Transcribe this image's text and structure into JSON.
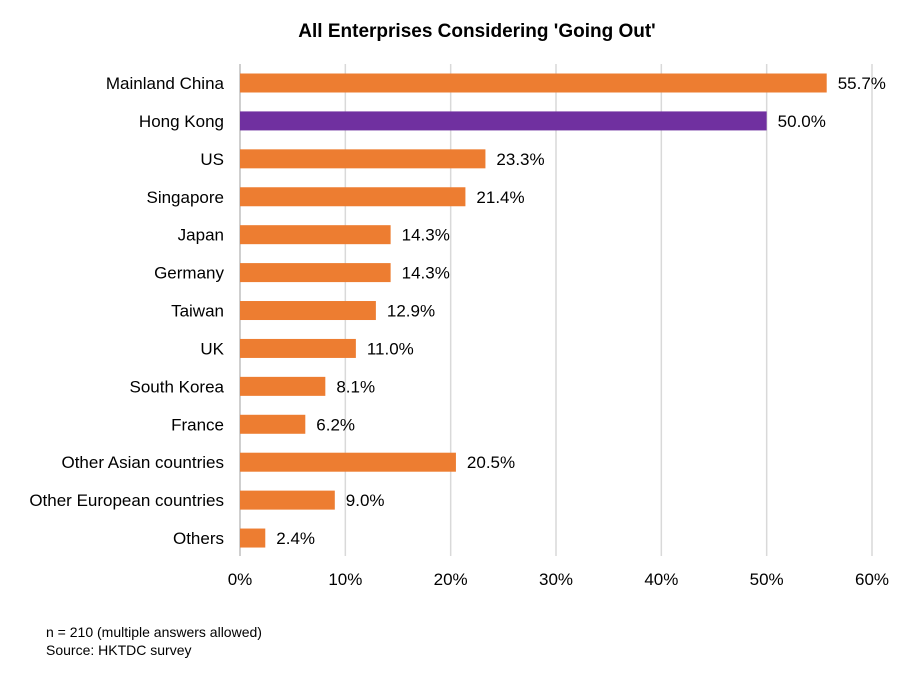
{
  "chart_data": {
    "type": "bar",
    "orientation": "horizontal",
    "title": "All Enterprises Considering 'Going Out'",
    "categories": [
      "Mainland China",
      "Hong Kong",
      "US",
      "Singapore",
      "Japan",
      "Germany",
      "Taiwan",
      "UK",
      "South Korea",
      "France",
      "Other Asian countries",
      "Other European countries",
      "Others"
    ],
    "values": [
      55.7,
      50.0,
      23.3,
      21.4,
      14.3,
      14.3,
      12.9,
      11.0,
      8.1,
      6.2,
      20.5,
      9.0,
      2.4
    ],
    "data_labels": [
      "55.7%",
      "50.0%",
      "23.3%",
      "21.4%",
      "14.3%",
      "14.3%",
      "12.9%",
      "11.0%",
      "8.1%",
      "6.2%",
      "20.5%",
      "9.0%",
      "2.4%"
    ],
    "bar_colors": [
      "#ED7D31",
      "#7030A0",
      "#ED7D31",
      "#ED7D31",
      "#ED7D31",
      "#ED7D31",
      "#ED7D31",
      "#ED7D31",
      "#ED7D31",
      "#ED7D31",
      "#ED7D31",
      "#ED7D31",
      "#ED7D31"
    ],
    "x_ticks": [
      0,
      10,
      20,
      30,
      40,
      50,
      60
    ],
    "x_tick_labels": [
      "0%",
      "10%",
      "20%",
      "30%",
      "40%",
      "50%",
      "60%"
    ],
    "xlim": [
      0,
      60
    ],
    "xlabel": "",
    "ylabel": "",
    "grid": "vertical",
    "legend": "none"
  },
  "notes": {
    "sample": "n = 210 (multiple answers allowed)",
    "source": "Source: HKTDC survey"
  }
}
